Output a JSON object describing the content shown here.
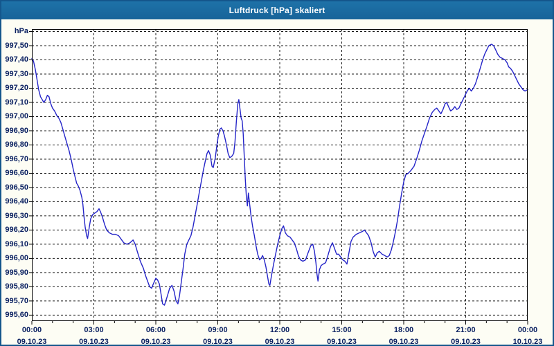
{
  "window": {
    "title": "Luftdruck [hPa] skaliert"
  },
  "colors": {
    "titlebar": "#176399",
    "window_border": "#14568c",
    "window_bg": "#fdfdf4",
    "plot_bg": "#ffffff",
    "grid": "#1a1a1a",
    "axis": "#000000",
    "label_text": "#0b2161",
    "line": "#2424c8"
  },
  "chart_data": {
    "type": "line",
    "title": "Luftdruck [hPa] skaliert",
    "xlabel": "",
    "ylabel": "hPa",
    "grid": "dashed",
    "legend_position": "none",
    "xlim_hours": [
      0,
      24
    ],
    "ylim": [
      995.558,
      997.617
    ],
    "x_ticks": [
      {
        "hour": 0,
        "time": "00:00",
        "date": "09.10.23"
      },
      {
        "hour": 3,
        "time": "03:00",
        "date": "09.10.23"
      },
      {
        "hour": 6,
        "time": "06:00",
        "date": "09.10.23"
      },
      {
        "hour": 9,
        "time": "09:00",
        "date": "09.10.23"
      },
      {
        "hour": 12,
        "time": "12:00",
        "date": "09.10.23"
      },
      {
        "hour": 15,
        "time": "15:00",
        "date": "09.10.23"
      },
      {
        "hour": 18,
        "time": "18:00",
        "date": "09.10.23"
      },
      {
        "hour": 21,
        "time": "21:00",
        "date": "09.10.23"
      },
      {
        "hour": 24,
        "time": "00:00",
        "date": "10.10.23"
      }
    ],
    "x_minor_tick_every_hours": 1,
    "y_ticks": [
      {
        "v": 995.6,
        "label": "995,60"
      },
      {
        "v": 995.7,
        "label": "995,70"
      },
      {
        "v": 995.8,
        "label": "995,80"
      },
      {
        "v": 995.9,
        "label": "995,90"
      },
      {
        "v": 996.0,
        "label": "996,00"
      },
      {
        "v": 996.1,
        "label": "996,10"
      },
      {
        "v": 996.2,
        "label": "996,20"
      },
      {
        "v": 996.3,
        "label": "996,30"
      },
      {
        "v": 996.4,
        "label": "996,40"
      },
      {
        "v": 996.5,
        "label": "996,50"
      },
      {
        "v": 996.6,
        "label": "996,60"
      },
      {
        "v": 996.7,
        "label": "996,70"
      },
      {
        "v": 996.8,
        "label": "996,80"
      },
      {
        "v": 996.9,
        "label": "996,90"
      },
      {
        "v": 997.0,
        "label": "997,00"
      },
      {
        "v": 997.1,
        "label": "997,10"
      },
      {
        "v": 997.2,
        "label": "997,20"
      },
      {
        "v": 997.3,
        "label": "997,30"
      },
      {
        "v": 997.4,
        "label": "997,40"
      },
      {
        "v": 997.5,
        "label": "997,50"
      },
      {
        "v": 997.6,
        "label": ""
      }
    ],
    "series": [
      {
        "name": "Luftdruck",
        "color": "#2424c8",
        "points": [
          [
            0.0,
            997.41
          ],
          [
            0.08,
            997.39
          ],
          [
            0.17,
            997.33
          ],
          [
            0.25,
            997.26
          ],
          [
            0.33,
            997.19
          ],
          [
            0.42,
            997.14
          ],
          [
            0.5,
            997.12
          ],
          [
            0.58,
            997.1
          ],
          [
            0.67,
            997.12
          ],
          [
            0.75,
            997.15
          ],
          [
            0.83,
            997.14
          ],
          [
            0.92,
            997.09
          ],
          [
            1.0,
            997.06
          ],
          [
            1.1,
            997.04
          ],
          [
            1.2,
            997.01
          ],
          [
            1.3,
            996.99
          ],
          [
            1.4,
            996.96
          ],
          [
            1.5,
            996.91
          ],
          [
            1.6,
            996.86
          ],
          [
            1.7,
            996.81
          ],
          [
            1.8,
            996.76
          ],
          [
            1.9,
            996.7
          ],
          [
            2.0,
            996.63
          ],
          [
            2.08,
            996.58
          ],
          [
            2.17,
            996.53
          ],
          [
            2.25,
            996.51
          ],
          [
            2.33,
            996.48
          ],
          [
            2.42,
            996.43
          ],
          [
            2.47,
            996.38
          ],
          [
            2.52,
            996.3
          ],
          [
            2.58,
            996.22
          ],
          [
            2.65,
            996.16
          ],
          [
            2.7,
            996.14
          ],
          [
            2.78,
            996.22
          ],
          [
            2.85,
            996.28
          ],
          [
            2.95,
            996.31
          ],
          [
            3.05,
            996.32
          ],
          [
            3.15,
            996.33
          ],
          [
            3.25,
            996.35
          ],
          [
            3.32,
            996.33
          ],
          [
            3.42,
            996.29
          ],
          [
            3.52,
            996.24
          ],
          [
            3.62,
            996.2
          ],
          [
            3.75,
            996.18
          ],
          [
            3.9,
            996.17
          ],
          [
            4.05,
            996.17
          ],
          [
            4.2,
            996.16
          ],
          [
            4.35,
            996.13
          ],
          [
            4.45,
            996.11
          ],
          [
            4.6,
            996.1
          ],
          [
            4.75,
            996.11
          ],
          [
            4.9,
            996.13
          ],
          [
            5.0,
            996.1
          ],
          [
            5.1,
            996.05
          ],
          [
            5.25,
            995.98
          ],
          [
            5.4,
            995.93
          ],
          [
            5.5,
            995.88
          ],
          [
            5.6,
            995.84
          ],
          [
            5.7,
            995.8
          ],
          [
            5.8,
            995.79
          ],
          [
            5.88,
            995.82
          ],
          [
            6.0,
            995.86
          ],
          [
            6.08,
            995.85
          ],
          [
            6.17,
            995.82
          ],
          [
            6.25,
            995.75
          ],
          [
            6.33,
            995.68
          ],
          [
            6.42,
            995.67
          ],
          [
            6.55,
            995.73
          ],
          [
            6.67,
            995.79
          ],
          [
            6.78,
            995.81
          ],
          [
            6.88,
            995.77
          ],
          [
            6.98,
            995.7
          ],
          [
            7.07,
            995.68
          ],
          [
            7.15,
            995.74
          ],
          [
            7.23,
            995.83
          ],
          [
            7.32,
            995.93
          ],
          [
            7.4,
            996.03
          ],
          [
            7.5,
            996.1
          ],
          [
            7.6,
            996.13
          ],
          [
            7.7,
            996.16
          ],
          [
            7.8,
            996.22
          ],
          [
            7.9,
            996.3
          ],
          [
            8.0,
            996.38
          ],
          [
            8.1,
            996.46
          ],
          [
            8.2,
            996.54
          ],
          [
            8.3,
            996.62
          ],
          [
            8.4,
            996.69
          ],
          [
            8.48,
            996.74
          ],
          [
            8.55,
            996.76
          ],
          [
            8.63,
            996.73
          ],
          [
            8.72,
            996.65
          ],
          [
            8.78,
            996.64
          ],
          [
            8.88,
            996.71
          ],
          [
            8.95,
            996.79
          ],
          [
            9.02,
            996.86
          ],
          [
            9.1,
            996.91
          ],
          [
            9.17,
            996.92
          ],
          [
            9.25,
            996.9
          ],
          [
            9.33,
            996.86
          ],
          [
            9.42,
            996.8
          ],
          [
            9.5,
            996.74
          ],
          [
            9.58,
            996.71
          ],
          [
            9.68,
            996.72
          ],
          [
            9.77,
            996.74
          ],
          [
            9.83,
            996.82
          ],
          [
            9.9,
            996.97
          ],
          [
            9.97,
            997.09
          ],
          [
            10.02,
            997.12
          ],
          [
            10.07,
            997.06
          ],
          [
            10.13,
            996.99
          ],
          [
            10.18,
            996.97
          ],
          [
            10.23,
            996.88
          ],
          [
            10.28,
            996.72
          ],
          [
            10.33,
            996.56
          ],
          [
            10.38,
            996.44
          ],
          [
            10.43,
            996.37
          ],
          [
            10.48,
            996.46
          ],
          [
            10.53,
            996.4
          ],
          [
            10.6,
            996.31
          ],
          [
            10.68,
            996.23
          ],
          [
            10.77,
            996.16
          ],
          [
            10.85,
            996.09
          ],
          [
            10.93,
            996.03
          ],
          [
            11.02,
            995.99
          ],
          [
            11.1,
            996.0
          ],
          [
            11.17,
            996.02
          ],
          [
            11.25,
            995.99
          ],
          [
            11.33,
            995.94
          ],
          [
            11.4,
            995.88
          ],
          [
            11.47,
            995.82
          ],
          [
            11.52,
            995.81
          ],
          [
            11.6,
            995.88
          ],
          [
            11.7,
            995.96
          ],
          [
            11.8,
            996.03
          ],
          [
            11.9,
            996.1
          ],
          [
            12.0,
            996.16
          ],
          [
            12.1,
            996.21
          ],
          [
            12.18,
            996.23
          ],
          [
            12.27,
            996.18
          ],
          [
            12.37,
            996.16
          ],
          [
            12.5,
            996.15
          ],
          [
            12.6,
            996.13
          ],
          [
            12.7,
            996.11
          ],
          [
            12.8,
            996.07
          ],
          [
            12.9,
            996.02
          ],
          [
            13.0,
            995.99
          ],
          [
            13.12,
            995.98
          ],
          [
            13.25,
            995.99
          ],
          [
            13.37,
            996.04
          ],
          [
            13.5,
            996.09
          ],
          [
            13.6,
            996.1
          ],
          [
            13.68,
            996.05
          ],
          [
            13.75,
            995.97
          ],
          [
            13.8,
            995.89
          ],
          [
            13.85,
            995.84
          ],
          [
            13.92,
            995.92
          ],
          [
            14.0,
            995.95
          ],
          [
            14.1,
            995.96
          ],
          [
            14.22,
            995.97
          ],
          [
            14.33,
            996.02
          ],
          [
            14.45,
            996.08
          ],
          [
            14.55,
            996.11
          ],
          [
            14.65,
            996.07
          ],
          [
            14.75,
            996.03
          ],
          [
            14.85,
            996.03
          ],
          [
            14.95,
            996.01
          ],
          [
            15.05,
            995.99
          ],
          [
            15.15,
            995.98
          ],
          [
            15.25,
            995.96
          ],
          [
            15.35,
            996.04
          ],
          [
            15.45,
            996.12
          ],
          [
            15.55,
            996.15
          ],
          [
            15.7,
            996.17
          ],
          [
            15.85,
            996.18
          ],
          [
            16.0,
            996.19
          ],
          [
            16.1,
            996.2
          ],
          [
            16.2,
            996.18
          ],
          [
            16.3,
            996.16
          ],
          [
            16.42,
            996.11
          ],
          [
            16.52,
            996.05
          ],
          [
            16.62,
            996.01
          ],
          [
            16.72,
            996.04
          ],
          [
            16.82,
            996.05
          ],
          [
            16.95,
            996.03
          ],
          [
            17.08,
            996.02
          ],
          [
            17.2,
            996.01
          ],
          [
            17.3,
            996.02
          ],
          [
            17.4,
            996.06
          ],
          [
            17.5,
            996.12
          ],
          [
            17.6,
            996.19
          ],
          [
            17.7,
            996.27
          ],
          [
            17.8,
            996.37
          ],
          [
            17.9,
            996.46
          ],
          [
            18.0,
            996.54
          ],
          [
            18.1,
            996.59
          ],
          [
            18.22,
            996.6
          ],
          [
            18.35,
            996.62
          ],
          [
            18.5,
            996.65
          ],
          [
            18.62,
            996.7
          ],
          [
            18.75,
            996.76
          ],
          [
            18.88,
            996.83
          ],
          [
            19.0,
            996.88
          ],
          [
            19.12,
            996.93
          ],
          [
            19.25,
            996.99
          ],
          [
            19.38,
            997.03
          ],
          [
            19.5,
            997.05
          ],
          [
            19.6,
            997.06
          ],
          [
            19.7,
            997.04
          ],
          [
            19.8,
            997.02
          ],
          [
            19.9,
            997.05
          ],
          [
            20.0,
            997.09
          ],
          [
            20.08,
            997.1
          ],
          [
            20.17,
            997.07
          ],
          [
            20.27,
            997.04
          ],
          [
            20.37,
            997.05
          ],
          [
            20.47,
            997.07
          ],
          [
            20.57,
            997.05
          ],
          [
            20.67,
            997.06
          ],
          [
            20.77,
            997.09
          ],
          [
            20.87,
            997.12
          ],
          [
            20.97,
            997.15
          ],
          [
            21.07,
            997.18
          ],
          [
            21.17,
            997.2
          ],
          [
            21.27,
            997.18
          ],
          [
            21.37,
            997.2
          ],
          [
            21.47,
            997.23
          ],
          [
            21.58,
            997.28
          ],
          [
            21.7,
            997.34
          ],
          [
            21.82,
            997.4
          ],
          [
            21.92,
            997.44
          ],
          [
            22.02,
            997.47
          ],
          [
            22.12,
            997.5
          ],
          [
            22.25,
            997.51
          ],
          [
            22.35,
            997.5
          ],
          [
            22.45,
            997.47
          ],
          [
            22.55,
            997.44
          ],
          [
            22.65,
            997.42
          ],
          [
            22.77,
            997.41
          ],
          [
            22.9,
            997.4
          ],
          [
            23.0,
            997.38
          ],
          [
            23.08,
            997.35
          ],
          [
            23.17,
            997.34
          ],
          [
            23.27,
            997.32
          ],
          [
            23.37,
            997.29
          ],
          [
            23.47,
            997.26
          ],
          [
            23.57,
            997.23
          ],
          [
            23.67,
            997.21
          ],
          [
            23.77,
            997.19
          ],
          [
            23.87,
            997.18
          ],
          [
            24.0,
            997.19
          ]
        ]
      }
    ]
  }
}
